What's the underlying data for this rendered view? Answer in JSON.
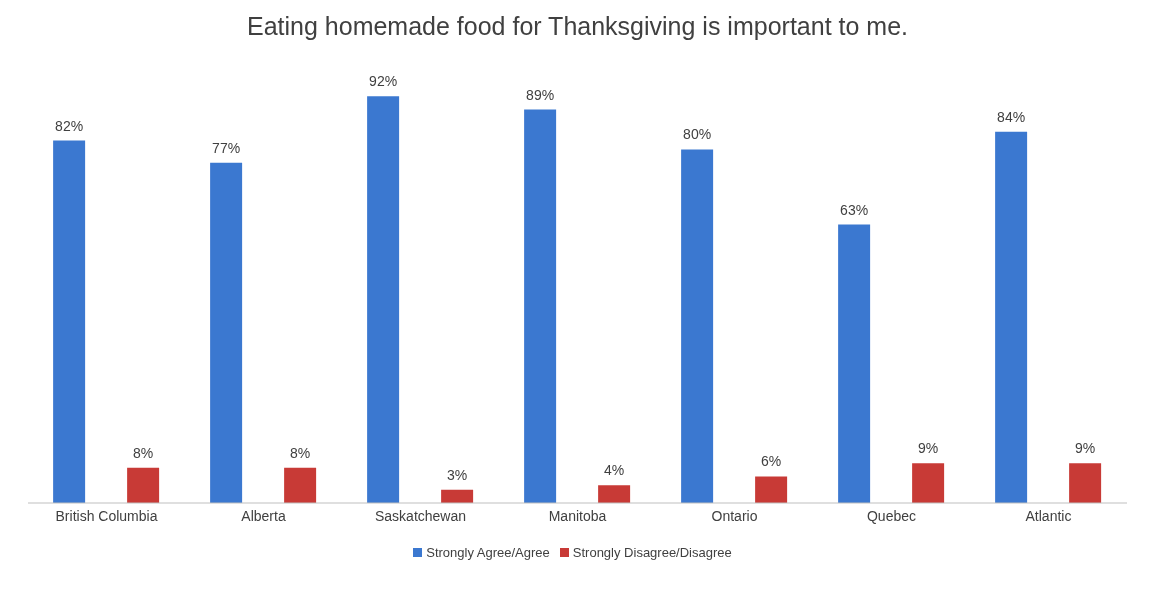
{
  "chart_data": {
    "type": "bar",
    "title": "Eating homemade food for Thanksgiving is important to me.",
    "categories": [
      "British Columbia",
      "Alberta",
      "Saskatchewan",
      "Manitoba",
      "Ontario",
      "Quebec",
      "Atlantic"
    ],
    "series": [
      {
        "name": "Strongly Agree/Agree",
        "color": "#3b78d0",
        "values": [
          82,
          77,
          92,
          89,
          80,
          63,
          84
        ],
        "value_labels": [
          "82%",
          "77%",
          "92%",
          "89%",
          "80%",
          "63%",
          "84%"
        ]
      },
      {
        "name": "Strongly Disagree/Disagree",
        "color": "#c83a36",
        "values": [
          8,
          8,
          3,
          4,
          6,
          9,
          9
        ],
        "value_labels": [
          "8%",
          "8%",
          "3%",
          "4%",
          "6%",
          "9%",
          "9%"
        ]
      }
    ],
    "grid": false,
    "legend": "bottom"
  }
}
